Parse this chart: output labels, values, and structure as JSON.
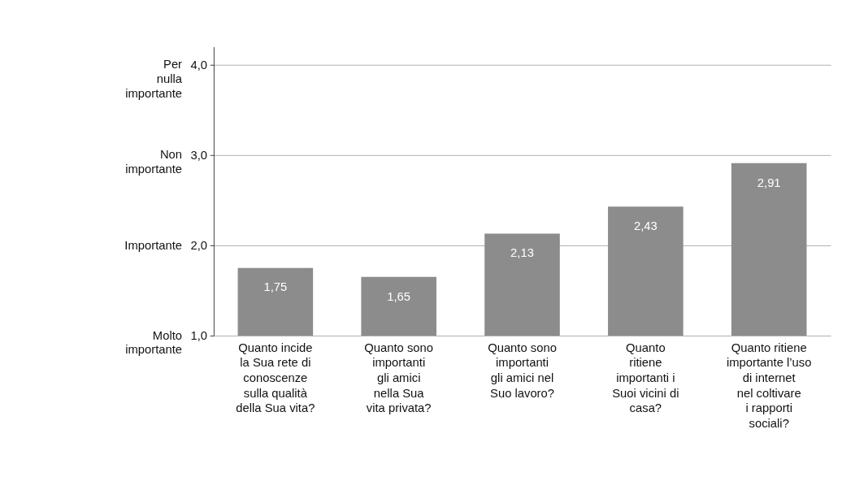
{
  "chart_data": {
    "type": "bar",
    "categories": [
      "Quanto incide\nla Sua rete di\nconoscenze\nsulla qualità\ndella Sua vita?",
      "Quanto sono\nimportanti\ngli amici\nnella Sua\nvita privata?",
      "Quanto sono\nimportanti\ngli amici nel\nSuo lavoro?",
      "Quanto\nritiene\nimportanti i\nSuoi vicini di\ncasa?",
      "Quanto ritiene\nimportante l’uso\ndi internet\nnel coltivare\ni rapporti\nsociali?"
    ],
    "values": [
      1.75,
      1.65,
      2.13,
      2.43,
      2.91
    ],
    "value_labels": [
      "1,75",
      "1,65",
      "2,13",
      "2,43",
      "2,91"
    ],
    "color": "#8c8c8c",
    "ylim": [
      1.0,
      4.2
    ],
    "yticks": [
      {
        "value": 1.0,
        "label": "1,0"
      },
      {
        "value": 2.0,
        "label": "2,0"
      },
      {
        "value": 3.0,
        "label": "3,0"
      },
      {
        "value": 4.0,
        "label": "4,0"
      }
    ],
    "annotations": [
      "Molto\nimportante",
      "Importante",
      "Non\nimportante",
      "Per\nnulla\nimportante"
    ],
    "grid": "y"
  }
}
